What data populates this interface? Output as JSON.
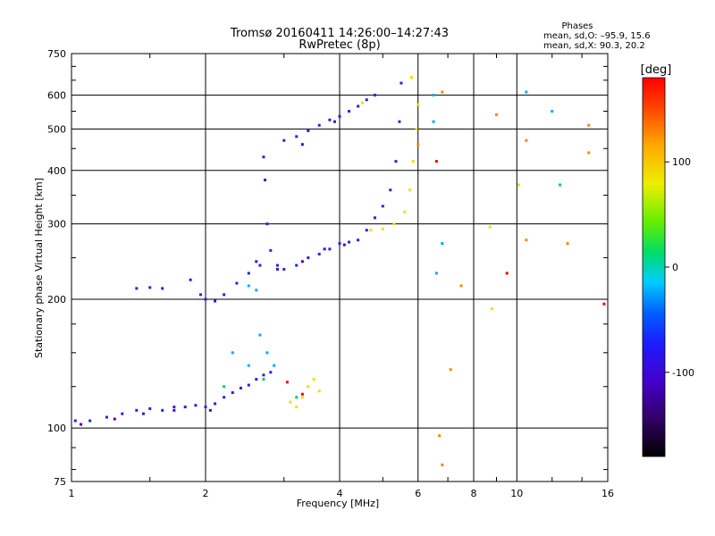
{
  "header": {
    "title_line1": "Tromsø 20160411 14:26:00–14:27:43",
    "title_line2": "RwPretec (8p)"
  },
  "stats": {
    "heading": "Phases",
    "o_line": "mean, sd,O: –95.9, 15.6",
    "x_line": "mean, sd,X: 90.3, 20.2"
  },
  "chart_data": {
    "type": "scatter",
    "xlabel": "Frequency [MHz]",
    "ylabel": "Stationary phase Virtual Height [km]",
    "xscale": "log",
    "yscale": "log",
    "xlim": [
      1,
      16
    ],
    "ylim": [
      75,
      750
    ],
    "x_ticks": [
      1,
      2,
      4,
      6,
      8,
      10,
      16
    ],
    "y_ticks": [
      75,
      100,
      200,
      300,
      400,
      500,
      600,
      750
    ],
    "grid": true,
    "colorbar": {
      "label": "[deg]",
      "range": [
        -180,
        180
      ],
      "ticks": [
        100,
        0,
        -100
      ]
    },
    "series": [
      {
        "phase": -100,
        "color": "#2222ee",
        "points": [
          [
            1.02,
            104
          ],
          [
            1.1,
            104
          ],
          [
            1.2,
            106
          ],
          [
            1.3,
            108
          ],
          [
            1.4,
            110
          ],
          [
            1.5,
            111
          ],
          [
            1.6,
            110
          ],
          [
            1.7,
            112
          ],
          [
            1.8,
            112
          ],
          [
            1.9,
            113
          ],
          [
            2.0,
            112
          ],
          [
            2.1,
            114
          ],
          [
            2.2,
            118
          ],
          [
            2.3,
            121
          ],
          [
            2.4,
            124
          ],
          [
            2.5,
            126
          ],
          [
            2.6,
            130
          ],
          [
            2.7,
            133
          ],
          [
            2.8,
            135
          ],
          [
            1.4,
            212
          ],
          [
            1.5,
            213
          ],
          [
            1.6,
            212
          ],
          [
            1.85,
            222
          ],
          [
            1.95,
            205
          ],
          [
            2.0,
            200
          ],
          [
            2.1,
            198
          ],
          [
            2.2,
            205
          ],
          [
            2.35,
            218
          ],
          [
            2.5,
            230
          ],
          [
            2.6,
            245
          ],
          [
            2.65,
            240
          ],
          [
            2.7,
            430
          ],
          [
            2.72,
            380
          ],
          [
            2.75,
            300
          ],
          [
            2.8,
            260
          ],
          [
            2.9,
            240
          ],
          [
            3.0,
            235
          ],
          [
            3.2,
            240
          ],
          [
            3.4,
            250
          ],
          [
            3.6,
            255
          ],
          [
            3.8,
            262
          ],
          [
            4.0,
            270
          ],
          [
            4.2,
            272
          ],
          [
            4.4,
            275
          ],
          [
            4.6,
            290
          ],
          [
            4.8,
            310
          ],
          [
            5.0,
            330
          ],
          [
            5.2,
            360
          ],
          [
            5.35,
            420
          ],
          [
            5.45,
            520
          ],
          [
            5.5,
            640
          ],
          [
            3.0,
            470
          ],
          [
            3.2,
            480
          ],
          [
            3.4,
            495
          ],
          [
            3.6,
            510
          ],
          [
            3.8,
            525
          ],
          [
            4.0,
            535
          ],
          [
            4.2,
            550
          ],
          [
            4.4,
            565
          ],
          [
            4.6,
            585
          ],
          [
            4.8,
            600
          ]
        ]
      },
      {
        "phase": -120,
        "color": "#5500aa",
        "points": [
          [
            1.05,
            102
          ],
          [
            1.25,
            105
          ],
          [
            1.45,
            108
          ],
          [
            1.7,
            110
          ],
          [
            2.05,
            110
          ],
          [
            3.3,
            245
          ],
          [
            3.7,
            262
          ],
          [
            4.1,
            268
          ],
          [
            3.3,
            460
          ],
          [
            3.9,
            520
          ],
          [
            2.9,
            235
          ]
        ]
      },
      {
        "phase": -60,
        "color": "#00aaff",
        "points": [
          [
            2.3,
            150
          ],
          [
            2.5,
            140
          ],
          [
            2.65,
            165
          ],
          [
            2.75,
            150
          ],
          [
            2.85,
            140
          ],
          [
            2.5,
            215
          ],
          [
            2.6,
            210
          ],
          [
            6.5,
            600
          ],
          [
            6.5,
            520
          ],
          [
            10.5,
            610
          ],
          [
            12.0,
            550
          ],
          [
            6.6,
            230
          ],
          [
            6.8,
            270
          ]
        ]
      },
      {
        "phase": 0,
        "color": "#00cc66",
        "points": [
          [
            2.7,
            130
          ],
          [
            2.2,
            125
          ],
          [
            3.2,
            118
          ],
          [
            12.5,
            370
          ]
        ]
      },
      {
        "phase": 100,
        "color": "#f0e000",
        "points": [
          [
            3.1,
            115
          ],
          [
            3.2,
            112
          ],
          [
            3.3,
            118
          ],
          [
            3.4,
            125
          ],
          [
            3.5,
            130
          ],
          [
            3.6,
            122
          ],
          [
            4.7,
            290
          ],
          [
            5.0,
            292
          ],
          [
            5.3,
            300
          ],
          [
            5.6,
            320
          ],
          [
            5.75,
            360
          ],
          [
            5.85,
            420
          ],
          [
            5.95,
            500
          ],
          [
            4.5,
            575
          ],
          [
            5.8,
            660
          ],
          [
            6.0,
            570
          ],
          [
            8.7,
            295
          ],
          [
            8.8,
            190
          ],
          [
            10.1,
            370
          ]
        ]
      },
      {
        "phase": 140,
        "color": "#ff8800",
        "points": [
          [
            6.7,
            96
          ],
          [
            6.8,
            82
          ],
          [
            7.1,
            137
          ],
          [
            7.5,
            215
          ],
          [
            9.0,
            540
          ],
          [
            10.5,
            470
          ],
          [
            10.5,
            275
          ],
          [
            13.0,
            270
          ],
          [
            14.5,
            510
          ],
          [
            14.5,
            440
          ],
          [
            6.0,
            460
          ],
          [
            6.8,
            610
          ]
        ]
      },
      {
        "phase": 170,
        "color": "#ee0000",
        "points": [
          [
            3.05,
            128
          ],
          [
            3.3,
            120
          ],
          [
            6.6,
            420
          ],
          [
            9.5,
            230
          ],
          [
            15.7,
            195
          ]
        ]
      }
    ]
  }
}
